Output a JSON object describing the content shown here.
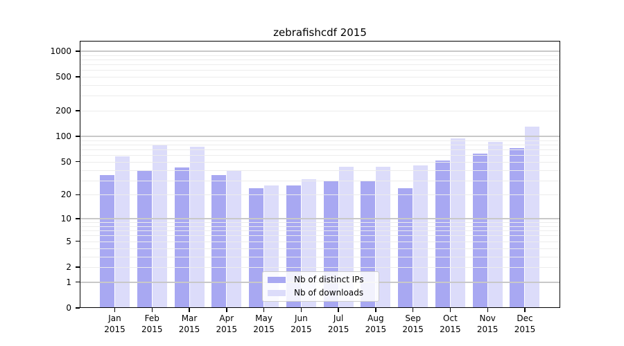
{
  "title": "zebrafishcdf 2015",
  "colors": {
    "distinct_ips_bar": "#a8a8f2",
    "downloads_bar": "#dcdcfa",
    "major_grid": "#c8c8c8",
    "minor_grid": "#ececec",
    "axis": "#000000",
    "legend_border": "#cccccc"
  },
  "legend": {
    "items": [
      {
        "label": "Nb of distinct IPs",
        "color": "#a8a8f2"
      },
      {
        "label": "Nb of downloads",
        "color": "#dcdcfa"
      }
    ]
  },
  "chart_data": {
    "type": "bar",
    "title": "zebrafishcdf 2015",
    "categories": [
      "Jan 2015",
      "Feb 2015",
      "Mar 2015",
      "Apr 2015",
      "May 2015",
      "Jun 2015",
      "Jul 2015",
      "Aug 2015",
      "Sep 2015",
      "Oct 2015",
      "Nov 2015",
      "Dec 2015"
    ],
    "series": [
      {
        "name": "Nb of distinct IPs",
        "color": "#a8a8f2",
        "values": [
          35,
          40,
          43,
          35,
          24,
          26,
          30,
          29,
          24,
          52,
          62,
          73
        ]
      },
      {
        "name": "Nb of downloads",
        "color": "#dcdcfa",
        "values": [
          58,
          80,
          76,
          40,
          26,
          31,
          44,
          44,
          45,
          95,
          86,
          130
        ]
      }
    ],
    "xlabel": "",
    "ylabel": "",
    "yscale": "log10(1+y)",
    "y_tick_values": [
      0,
      1,
      2,
      5,
      10,
      20,
      50,
      100,
      200,
      500,
      1000
    ],
    "major_grid_values": [
      1,
      10,
      100,
      1000
    ],
    "ylim": [
      0,
      1320
    ],
    "grid": true,
    "legend_position": "lower center"
  }
}
